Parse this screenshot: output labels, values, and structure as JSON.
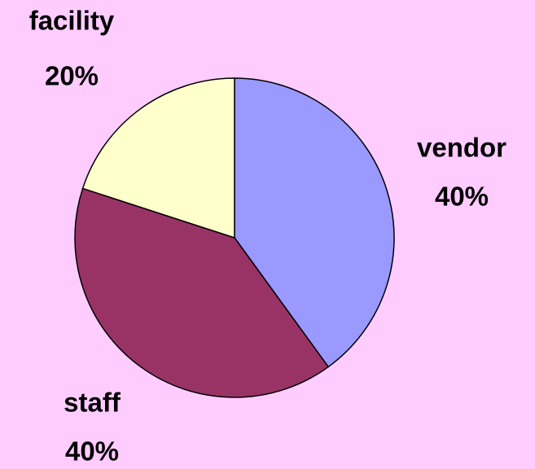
{
  "chart_data": {
    "type": "pie",
    "categories": [
      "vendor",
      "staff",
      "facility"
    ],
    "values": [
      40,
      40,
      20
    ],
    "value_labels": [
      "40%",
      "40%",
      "20%"
    ],
    "colors": [
      "#9999ff",
      "#993366",
      "#ffffcc"
    ]
  }
}
